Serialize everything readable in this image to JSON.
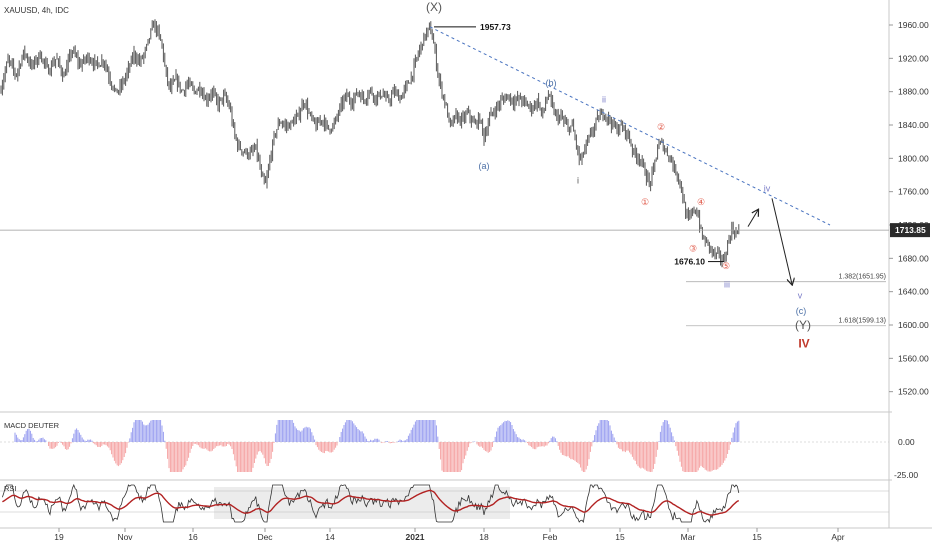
{
  "header": {
    "symbol_label": "XAUUSD, 4h, IDC"
  },
  "chart_data": {
    "type": "candlestick",
    "symbol": "XAUUSD",
    "timeframe": "4h",
    "source": "IDC",
    "x_ticks": [
      "19",
      "Nov",
      "16",
      "Dec",
      "14",
      "2021",
      "18",
      "Feb",
      "15",
      "Mar",
      "15",
      "Apr"
    ],
    "y_ticks": [
      1960,
      1920,
      1880,
      1840,
      1800,
      1760,
      1720,
      1680,
      1640,
      1600,
      1560,
      1520
    ],
    "y_tick_labels": [
      "1960.00",
      "1920.00",
      "1880.00",
      "1840.00",
      "1800.00",
      "1760.00",
      "1720.00",
      "1680.00",
      "1640.00",
      "1600.00",
      "1560.00",
      "1520.00"
    ],
    "ylim": [
      1498,
      1990
    ],
    "current_price": {
      "value": 1713.85,
      "label": "1713.85"
    },
    "high_marker": {
      "value": 1957.73,
      "label": "1957.73"
    },
    "low_marker": {
      "value": 1676.1,
      "label": "1676.10"
    },
    "fib_levels": [
      {
        "value": 1651.95,
        "label": "1.382(1651.95)"
      },
      {
        "value": 1599.13,
        "label": "1.618(1599.13)"
      }
    ],
    "price_path": [
      [
        0,
        1880
      ],
      [
        8,
        1918
      ],
      [
        16,
        1900
      ],
      [
        24,
        1928
      ],
      [
        32,
        1910
      ],
      [
        40,
        1925
      ],
      [
        48,
        1905
      ],
      [
        56,
        1920
      ],
      [
        64,
        1898
      ],
      [
        72,
        1930
      ],
      [
        80,
        1912
      ],
      [
        88,
        1922
      ],
      [
        96,
        1912
      ],
      [
        104,
        1918
      ],
      [
        110,
        1895
      ],
      [
        116,
        1878
      ],
      [
        122,
        1888
      ],
      [
        128,
        1905
      ],
      [
        134,
        1925
      ],
      [
        140,
        1915
      ],
      [
        146,
        1930
      ],
      [
        150,
        1948
      ],
      [
        154,
        1962
      ],
      [
        158,
        1950
      ],
      [
        162,
        1935
      ],
      [
        166,
        1900
      ],
      [
        170,
        1882
      ],
      [
        176,
        1895
      ],
      [
        182,
        1880
      ],
      [
        188,
        1890
      ],
      [
        194,
        1880
      ],
      [
        200,
        1885
      ],
      [
        206,
        1870
      ],
      [
        212,
        1880
      ],
      [
        218,
        1865
      ],
      [
        224,
        1875
      ],
      [
        230,
        1860
      ],
      [
        234,
        1830
      ],
      [
        238,
        1815
      ],
      [
        244,
        1808
      ],
      [
        250,
        1805
      ],
      [
        256,
        1812
      ],
      [
        262,
        1775
      ],
      [
        266,
        1768
      ],
      [
        270,
        1800
      ],
      [
        275,
        1830
      ],
      [
        280,
        1845
      ],
      [
        286,
        1838
      ],
      [
        292,
        1842
      ],
      [
        298,
        1850
      ],
      [
        304,
        1870
      ],
      [
        310,
        1850
      ],
      [
        316,
        1838
      ],
      [
        322,
        1848
      ],
      [
        328,
        1835
      ],
      [
        334,
        1840
      ],
      [
        340,
        1860
      ],
      [
        346,
        1875
      ],
      [
        352,
        1868
      ],
      [
        358,
        1880
      ],
      [
        364,
        1870
      ],
      [
        370,
        1882
      ],
      [
        376,
        1872
      ],
      [
        382,
        1878
      ],
      [
        388,
        1868
      ],
      [
        394,
        1880
      ],
      [
        400,
        1872
      ],
      [
        406,
        1885
      ],
      [
        412,
        1900
      ],
      [
        418,
        1925
      ],
      [
        424,
        1945
      ],
      [
        430,
        1957
      ],
      [
        434,
        1935
      ],
      [
        438,
        1900
      ],
      [
        442,
        1880
      ],
      [
        446,
        1862
      ],
      [
        450,
        1838
      ],
      [
        456,
        1850
      ],
      [
        462,
        1845
      ],
      [
        468,
        1855
      ],
      [
        474,
        1840
      ],
      [
        480,
        1848
      ],
      [
        484,
        1825
      ],
      [
        490,
        1850
      ],
      [
        496,
        1860
      ],
      [
        502,
        1870
      ],
      [
        508,
        1875
      ],
      [
        514,
        1868
      ],
      [
        520,
        1872
      ],
      [
        526,
        1865
      ],
      [
        532,
        1860
      ],
      [
        538,
        1870
      ],
      [
        542,
        1850
      ],
      [
        548,
        1878
      ],
      [
        552,
        1862
      ],
      [
        556,
        1850
      ],
      [
        562,
        1848
      ],
      [
        568,
        1835
      ],
      [
        572,
        1840
      ],
      [
        576,
        1818
      ],
      [
        580,
        1795
      ],
      [
        586,
        1815
      ],
      [
        592,
        1832
      ],
      [
        598,
        1848
      ],
      [
        604,
        1855
      ],
      [
        610,
        1845
      ],
      [
        616,
        1835
      ],
      [
        622,
        1838
      ],
      [
        628,
        1828
      ],
      [
        634,
        1806
      ],
      [
        640,
        1800
      ],
      [
        646,
        1780
      ],
      [
        650,
        1768
      ],
      [
        654,
        1790
      ],
      [
        658,
        1815
      ],
      [
        662,
        1818
      ],
      [
        666,
        1808
      ],
      [
        670,
        1802
      ],
      [
        674,
        1788
      ],
      [
        678,
        1780
      ],
      [
        682,
        1760
      ],
      [
        686,
        1730
      ],
      [
        690,
        1728
      ],
      [
        694,
        1740
      ],
      [
        698,
        1732
      ],
      [
        702,
        1705
      ],
      [
        708,
        1697
      ],
      [
        714,
        1685
      ],
      [
        720,
        1682
      ],
      [
        724,
        1676
      ],
      [
        728,
        1700
      ],
      [
        732,
        1715
      ],
      [
        736,
        1710
      ],
      [
        740,
        1714
      ]
    ],
    "trendline": {
      "from": [
        430,
        1957.73
      ],
      "to": [
        830,
        1720
      ]
    },
    "projection_arrows": [
      {
        "from": [
          748,
          1718
        ],
        "to": [
          758,
          1738
        ]
      },
      {
        "from": [
          772,
          1752
        ],
        "to": [
          792,
          1649
        ]
      }
    ],
    "wave_labels": [
      {
        "text": "(X)",
        "x": 434,
        "y": 1977,
        "color": "#555555"
      },
      {
        "text": "(a)",
        "x": 484,
        "y": 1787,
        "color": "#4b6fa6"
      },
      {
        "text": "(b)",
        "x": 551,
        "y": 1887,
        "color": "#4b6fa6"
      },
      {
        "text": "ii",
        "x": 604,
        "y": 1867,
        "color": "#7b7dc8"
      },
      {
        "text": "i",
        "x": 578,
        "y": 1770,
        "color": "#555555"
      },
      {
        "text": "①",
        "x": 645,
        "y": 1744,
        "color": "#e05a4a"
      },
      {
        "text": "②",
        "x": 661,
        "y": 1834,
        "color": "#e05a4a"
      },
      {
        "text": "③",
        "x": 693,
        "y": 1688,
        "color": "#e05a4a"
      },
      {
        "text": "④",
        "x": 701,
        "y": 1744,
        "color": "#e05a4a"
      },
      {
        "text": "⑤",
        "x": 726,
        "y": 1667,
        "color": "#e05a4a"
      },
      {
        "text": "iii",
        "x": 727,
        "y": 1645,
        "color": "#7b7dc8"
      },
      {
        "text": "iv",
        "x": 767,
        "y": 1760,
        "color": "#7b7dc8"
      },
      {
        "text": "v",
        "x": 800,
        "y": 1632,
        "color": "#7b7dc8"
      },
      {
        "text": "(c)",
        "x": 801,
        "y": 1613,
        "color": "#4b6fa6"
      },
      {
        "text": "(Y)",
        "x": 803,
        "y": 1595,
        "color": "#555555"
      },
      {
        "text": "IV",
        "x": 804,
        "y": 1573,
        "color": "#c0392b"
      }
    ],
    "macd": {
      "title": "MACD DEUTER",
      "zero_label": "0.00",
      "low_label": "-25.00",
      "positive_color": "#9a9ff0",
      "negative_color": "#f5a3a3"
    },
    "rsi": {
      "title": "RSI",
      "line_color": "#333333",
      "signal_color": "#b22222"
    }
  }
}
